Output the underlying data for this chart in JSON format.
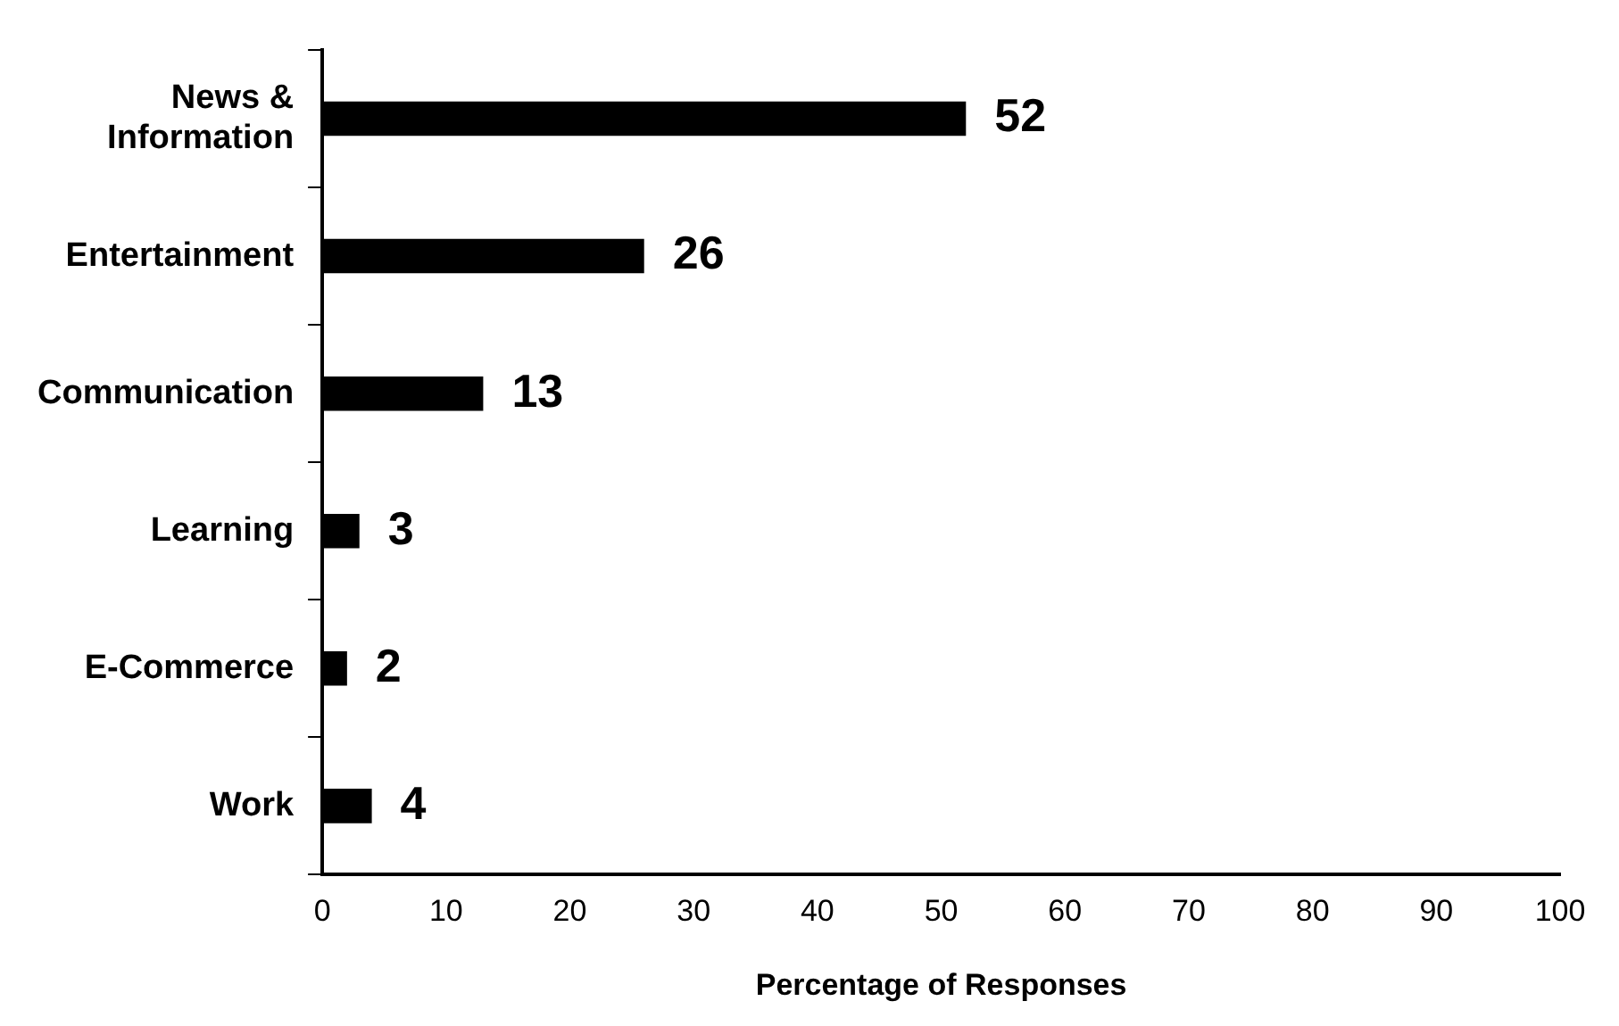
{
  "chart_data": {
    "type": "bar",
    "orientation": "horizontal",
    "xlabel": "Percentage of Responses",
    "categories": [
      "News & Information",
      "Entertainment",
      "Communication",
      "Learning",
      "E-Commerce",
      "Work"
    ],
    "values": [
      52,
      26,
      13,
      3,
      2,
      4
    ],
    "color": "#000000",
    "xlim": [
      0,
      100
    ],
    "xticks": [
      0,
      10,
      20,
      30,
      40,
      50,
      60,
      70,
      80,
      90,
      100
    ],
    "grid": false,
    "legend": false,
    "data_labels": true
  }
}
